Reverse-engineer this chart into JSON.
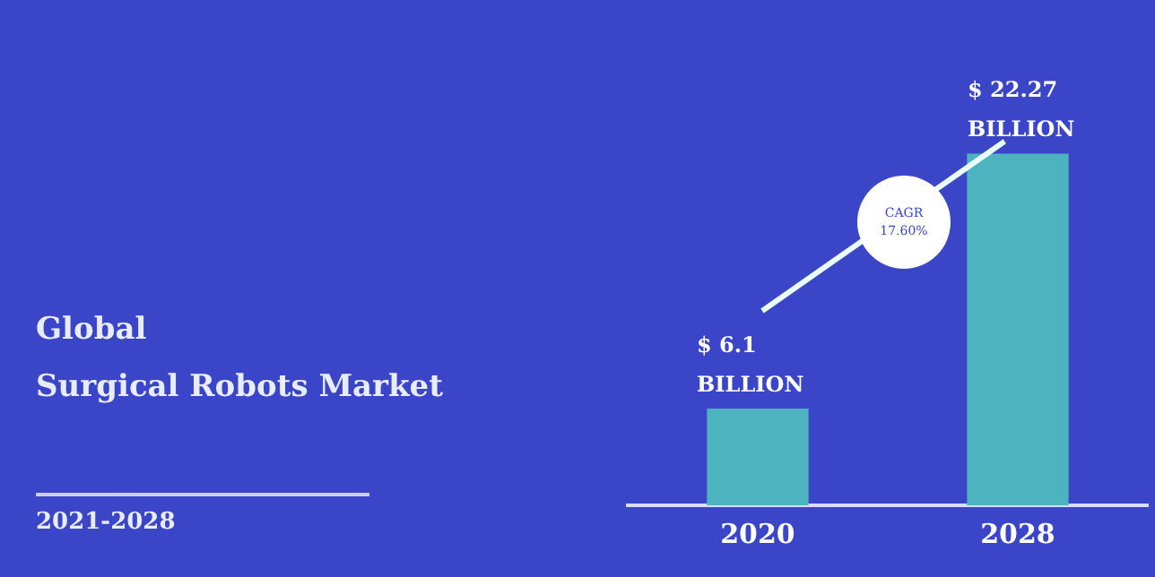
{
  "chart_data": {
    "type": "bar",
    "title": "Global\nSurgical Robots Market",
    "subtitle": "2021-2028",
    "categories": [
      "2020",
      "2028"
    ],
    "values": [
      6.1,
      22.27
    ],
    "value_labels": [
      "$ 6.1 BILLION",
      "$ 22.27 BILLION"
    ],
    "color": "#4db3bf",
    "tick_labels": "x",
    "annotations": [
      "CAGR 17.60%"
    ]
  }
}
